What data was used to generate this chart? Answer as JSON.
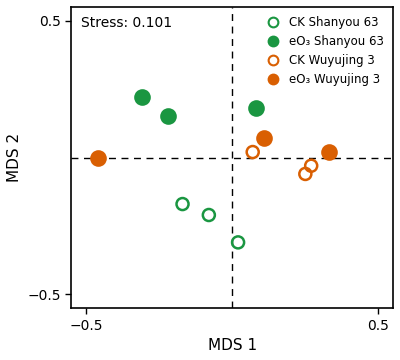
{
  "xlabel": "MDS 1",
  "ylabel": "MDS 2",
  "xlim": [
    -0.55,
    0.55
  ],
  "ylim": [
    -0.55,
    0.55
  ],
  "stress_text": "Stress: 0.101",
  "green_color": "#1a9641",
  "orange_color": "#d95f02",
  "series": {
    "CK Shanyou 63": {
      "x": [
        -0.17,
        -0.08,
        0.02
      ],
      "y": [
        -0.17,
        -0.21,
        -0.31
      ],
      "facecolor": "none",
      "edgecolor": "#1a9641",
      "size": 75,
      "lw": 1.8
    },
    "eO3 Shanyou 63": {
      "x": [
        -0.22,
        -0.31,
        0.08
      ],
      "y": [
        0.15,
        0.22,
        0.18
      ],
      "facecolor": "#1a9641",
      "edgecolor": "#1a9641",
      "size": 110,
      "lw": 1.5
    },
    "CK Wuyujing 3": {
      "x": [
        0.07,
        0.25,
        0.27
      ],
      "y": [
        0.02,
        -0.06,
        -0.03
      ],
      "facecolor": "none",
      "edgecolor": "#d95f02",
      "size": 75,
      "lw": 1.8
    },
    "eO3 Wuyujing 3": {
      "x": [
        -0.46,
        0.11,
        0.33
      ],
      "y": [
        0.0,
        0.07,
        0.02
      ],
      "facecolor": "#d95f02",
      "edgecolor": "#d95f02",
      "size": 110,
      "lw": 1.5
    }
  },
  "legend_labels": [
    "CK Shanyou 63",
    "eO₃ Shanyou 63",
    "CK Wuyujing 3",
    "eO₃ Wuyujing 3"
  ],
  "legend_filled": [
    false,
    true,
    false,
    true
  ],
  "legend_colors": [
    "#1a9641",
    "#1a9641",
    "#d95f02",
    "#d95f02"
  ]
}
